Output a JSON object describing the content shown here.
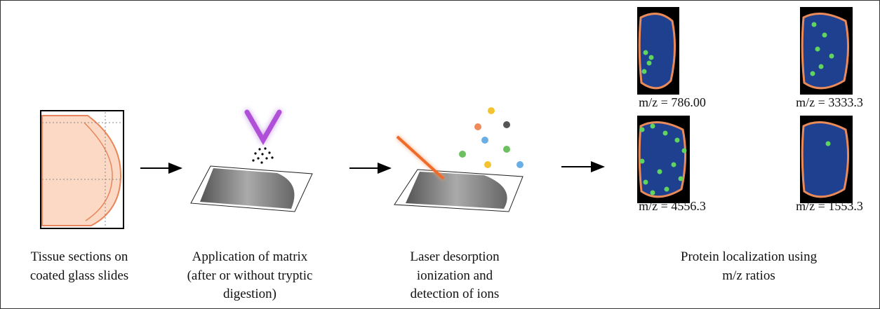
{
  "steps": [
    {
      "caption": [
        "Tissue sections on",
        "coated glass slides"
      ]
    },
    {
      "caption": [
        "Application of matrix",
        "(after or without tryptic",
        "digestion)"
      ]
    },
    {
      "caption": [
        "Laser desorption",
        "ionization and",
        "detection of ions"
      ]
    },
    {
      "caption": [
        "Protein localization using",
        "m/z ratios"
      ]
    }
  ],
  "images": [
    {
      "label": "m/z = 786.00"
    },
    {
      "label": "m/z = 3333.3"
    },
    {
      "label": "m/z = 4556.3"
    },
    {
      "label": "m/z = 1553.3"
    }
  ]
}
